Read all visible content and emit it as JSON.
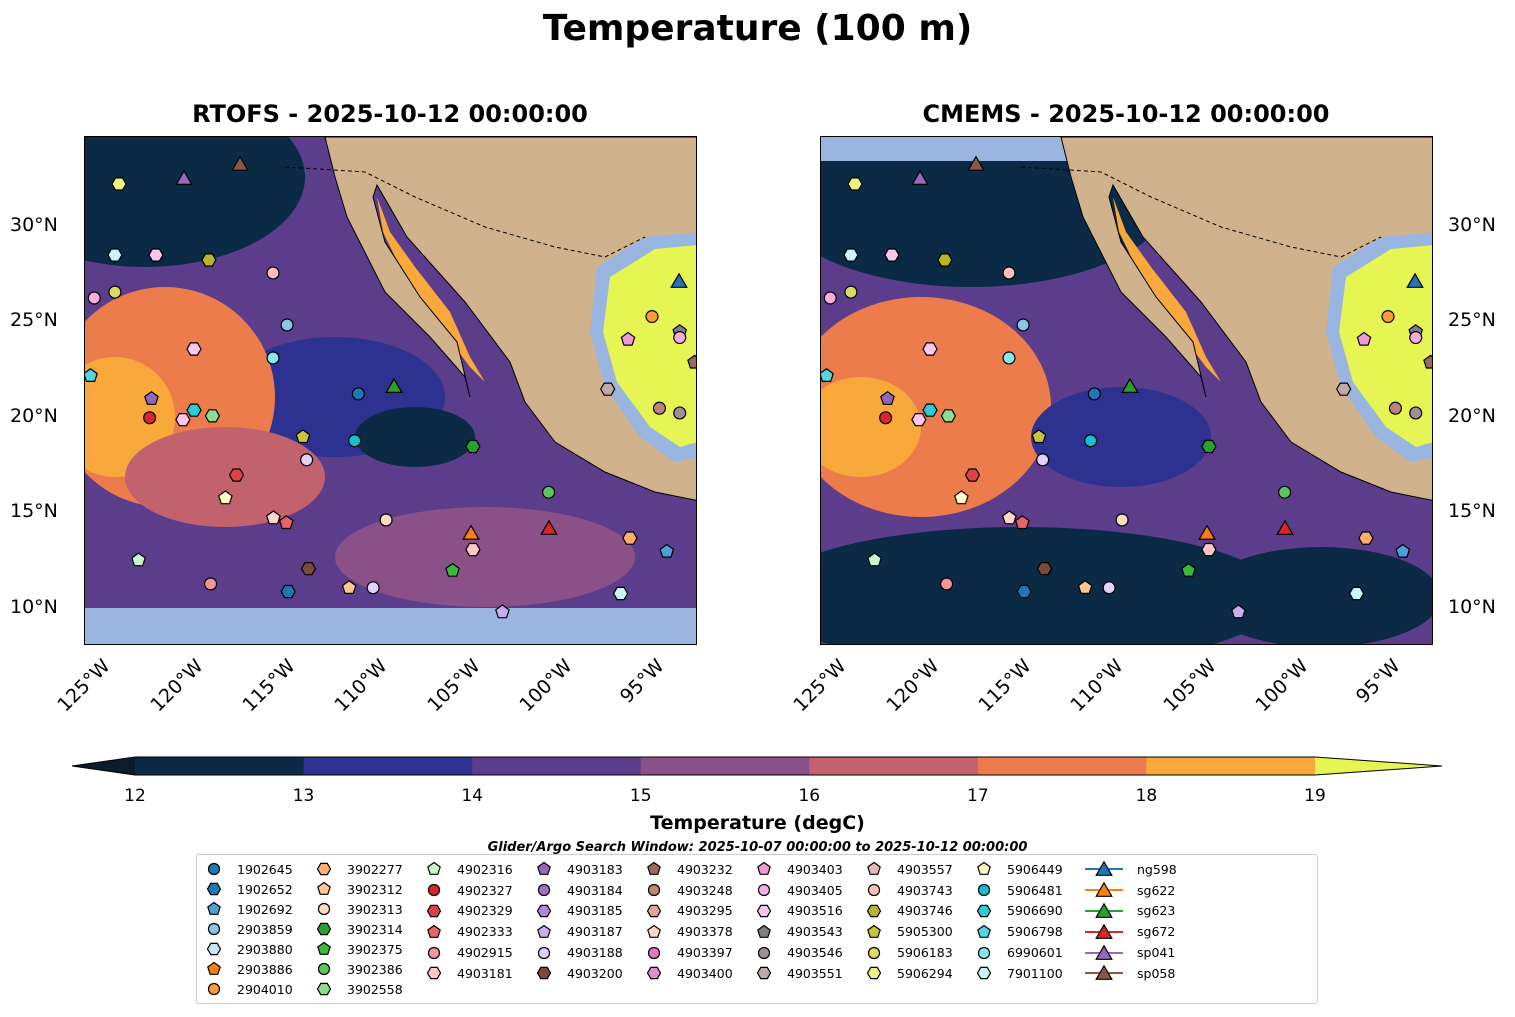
{
  "title": "Temperature (100 m)",
  "panels": [
    {
      "title": "RTOFS - 2025-10-12 00:00:00"
    },
    {
      "title": "CMEMS - 2025-10-12 00:00:00"
    }
  ],
  "lat_ticks": [
    "30°N",
    "25°N",
    "20°N",
    "15°N",
    "10°N"
  ],
  "lat_values": [
    30,
    25,
    20,
    15,
    10
  ],
  "lon_ticks": [
    "125°W",
    "120°W",
    "115°W",
    "110°W",
    "105°W",
    "100°W",
    "95°W"
  ],
  "lon_values": [
    -125,
    -120,
    -115,
    -110,
    -105,
    -100,
    -95
  ],
  "colorbar": {
    "label": "Temperature (degC)",
    "ticks": [
      "12",
      "13",
      "14",
      "15",
      "16",
      "17",
      "18",
      "19"
    ],
    "colors": [
      "#0a2a46",
      "#2d318f",
      "#5b3d8c",
      "#8a5088",
      "#c1626d",
      "#ec7c4c",
      "#f9a93b"
    ],
    "under": "#0b1d2c",
    "over": "#e6f554"
  },
  "search_window": "Glider/Argo Search Window: 2025-10-07 00:00:00 to 2025-10-12 00:00:00",
  "legend_columns": [
    [
      {
        "id": "1902645",
        "shape": "circle",
        "color": "#1f77b4"
      },
      {
        "id": "1902652",
        "shape": "hex",
        "color": "#1f77b4"
      },
      {
        "id": "1902692",
        "shape": "pent",
        "color": "#4e9fd6"
      },
      {
        "id": "2903859",
        "shape": "circle",
        "color": "#8dc4ea"
      },
      {
        "id": "2903880",
        "shape": "hex",
        "color": "#c6e4f7"
      },
      {
        "id": "2903886",
        "shape": "pent",
        "color": "#ff7f0e"
      },
      {
        "id": "2904010",
        "shape": "circle",
        "color": "#ff9a3c"
      }
    ],
    [
      {
        "id": "3902277",
        "shape": "hex",
        "color": "#ffae6b"
      },
      {
        "id": "3902312",
        "shape": "pent",
        "color": "#ffc592"
      },
      {
        "id": "3902313",
        "shape": "circle",
        "color": "#ffdcbd"
      },
      {
        "id": "3902314",
        "shape": "hex",
        "color": "#2ca02c"
      },
      {
        "id": "3902375",
        "shape": "pent",
        "color": "#3db83d"
      },
      {
        "id": "3902386",
        "shape": "circle",
        "color": "#5cc65c"
      },
      {
        "id": "3902558",
        "shape": "hex",
        "color": "#8fdc8f"
      }
    ],
    [
      {
        "id": "4902316",
        "shape": "pent",
        "color": "#c8f7c8"
      },
      {
        "id": "4902327",
        "shape": "circle",
        "color": "#d62728"
      },
      {
        "id": "4902329",
        "shape": "hex",
        "color": "#dd4446"
      },
      {
        "id": "4902333",
        "shape": "pent",
        "color": "#e86466"
      },
      {
        "id": "4902915",
        "shape": "circle",
        "color": "#f19797"
      },
      {
        "id": "4903181",
        "shape": "hex",
        "color": "#ffc6c6"
      }
    ],
    [
      {
        "id": "4903183",
        "shape": "pent",
        "color": "#9467bd"
      },
      {
        "id": "4903184",
        "shape": "circle",
        "color": "#9d74c4"
      },
      {
        "id": "4903185",
        "shape": "hex",
        "color": "#ad8ad2"
      },
      {
        "id": "4903187",
        "shape": "pent",
        "color": "#c9aef0"
      },
      {
        "id": "4903188",
        "shape": "circle",
        "color": "#e3d0fb"
      },
      {
        "id": "4903200",
        "shape": "hex",
        "color": "#7b4a3c"
      }
    ],
    [
      {
        "id": "4903232",
        "shape": "pent",
        "color": "#9b6a5c"
      },
      {
        "id": "4903248",
        "shape": "circle",
        "color": "#bb8677"
      },
      {
        "id": "4903295",
        "shape": "hex",
        "color": "#d9a89a"
      },
      {
        "id": "4903378",
        "shape": "pent",
        "color": "#ffd6cb"
      },
      {
        "id": "4903397",
        "shape": "circle",
        "color": "#e377c2"
      },
      {
        "id": "4903400",
        "shape": "hex",
        "color": "#e88bcd"
      }
    ],
    [
      {
        "id": "4903403",
        "shape": "pent",
        "color": "#f09bd6"
      },
      {
        "id": "4903405",
        "shape": "circle",
        "color": "#f7aedf"
      },
      {
        "id": "4903516",
        "shape": "hex",
        "color": "#fdc6ec"
      },
      {
        "id": "4903543",
        "shape": "pent",
        "color": "#7f7f7f"
      },
      {
        "id": "4903546",
        "shape": "circle",
        "color": "#9b9391"
      },
      {
        "id": "4903551",
        "shape": "hex",
        "color": "#bfaaaa"
      }
    ],
    [
      {
        "id": "4903557",
        "shape": "pent",
        "color": "#e3baba"
      },
      {
        "id": "4903743",
        "shape": "circle",
        "color": "#ffbfbf"
      },
      {
        "id": "4903746",
        "shape": "hex",
        "color": "#b5b52a"
      },
      {
        "id": "5905300",
        "shape": "pent",
        "color": "#c5c53a"
      },
      {
        "id": "5906183",
        "shape": "circle",
        "color": "#dbdb66"
      },
      {
        "id": "5906294",
        "shape": "hex",
        "color": "#f0f080"
      }
    ],
    [
      {
        "id": "5906449",
        "shape": "pent",
        "color": "#fffcc8"
      },
      {
        "id": "5906481",
        "shape": "circle",
        "color": "#17becf"
      },
      {
        "id": "5906690",
        "shape": "hex",
        "color": "#2cc9d6"
      },
      {
        "id": "5906798",
        "shape": "pent",
        "color": "#52d6df"
      },
      {
        "id": "6990601",
        "shape": "circle",
        "color": "#86e8ef"
      },
      {
        "id": "7901100",
        "shape": "hex",
        "color": "#c8f5fa"
      }
    ],
    [
      {
        "id": "ng598",
        "shape": "tri",
        "color": "#1f77b4",
        "line": true
      },
      {
        "id": "sg622",
        "shape": "tri",
        "color": "#ff7f0e",
        "line": true
      },
      {
        "id": "sg623",
        "shape": "tri",
        "color": "#2ca02c",
        "line": true
      },
      {
        "id": "sg672",
        "shape": "tri",
        "color": "#d62728",
        "line": true
      },
      {
        "id": "sp041",
        "shape": "tri",
        "color": "#9467bd",
        "line": true
      },
      {
        "id": "sp058",
        "shape": "tri",
        "color": "#8c564b",
        "line": true
      }
    ]
  ],
  "markers": [
    {
      "id": "sp041",
      "lon": -120.74,
      "lat": 32.55
    },
    {
      "id": "sp058",
      "lon": -117.71,
      "lat": 33.29
    },
    {
      "id": "ng598",
      "lon": -93.94,
      "lat": 27.16
    },
    {
      "id": "sg623",
      "lon": -109.37,
      "lat": 21.66
    },
    {
      "id": "sg622",
      "lon": -105.2,
      "lat": 13.97
    },
    {
      "id": "sg672",
      "lon": -100.98,
      "lat": 14.23
    },
    {
      "id": "5906294",
      "lon": -124.26,
      "lat": 32.24
    },
    {
      "id": "7901100",
      "lon": -124.48,
      "lat": 28.52
    },
    {
      "id": "4903516",
      "lon": -122.26,
      "lat": 28.52
    },
    {
      "id": "4903746",
      "lon": -119.39,
      "lat": 28.26
    },
    {
      "id": "4903743",
      "lon": -115.92,
      "lat": 27.58
    },
    {
      "id": "2903859",
      "lon": -115.16,
      "lat": 24.86
    },
    {
      "id": "6990601",
      "lon": -115.92,
      "lat": 23.13
    },
    {
      "id": "4903405",
      "lon": -125.6,
      "lat": 26.27
    },
    {
      "id": "5906183",
      "lon": -124.48,
      "lat": 26.58
    },
    {
      "id": "4903516",
      "lon": -120.2,
      "lat": 23.6
    },
    {
      "id": "5906798",
      "lon": -125.8,
      "lat": 22.2
    },
    {
      "id": "4903183",
      "lon": -122.5,
      "lat": 21.0
    },
    {
      "id": "4902327",
      "lon": -122.6,
      "lat": 20.0
    },
    {
      "id": "4903516",
      "lon": -120.8,
      "lat": 19.9
    },
    {
      "id": "5906690",
      "lon": -120.2,
      "lat": 20.4
    },
    {
      "id": "3902558",
      "lon": -119.2,
      "lat": 20.1
    },
    {
      "id": "4902329",
      "lon": -117.9,
      "lat": 17.0
    },
    {
      "id": "5906449",
      "lon": -118.5,
      "lat": 15.8
    },
    {
      "id": "5905300",
      "lon": -114.3,
      "lat": 19.0
    },
    {
      "id": "4903188",
      "lon": -114.1,
      "lat": 17.8
    },
    {
      "id": "1902645",
      "lon": -111.3,
      "lat": 21.25
    },
    {
      "id": "5906481",
      "lon": -111.5,
      "lat": 18.8
    },
    {
      "id": "3902314",
      "lon": -105.1,
      "lat": 18.5
    },
    {
      "id": "3902386",
      "lon": -101.0,
      "lat": 16.1
    },
    {
      "id": "4903378",
      "lon": -115.9,
      "lat": 14.75
    },
    {
      "id": "4902333",
      "lon": -115.2,
      "lat": 14.5
    },
    {
      "id": "3902313",
      "lon": -109.8,
      "lat": 14.65
    },
    {
      "id": "4903181",
      "lon": -105.1,
      "lat": 13.1
    },
    {
      "id": "4902316",
      "lon": -123.2,
      "lat": 12.55
    },
    {
      "id": "4902915",
      "lon": -119.3,
      "lat": 11.3
    },
    {
      "id": "4903200",
      "lon": -114.0,
      "lat": 12.1
    },
    {
      "id": "1902652",
      "lon": -115.1,
      "lat": 10.9
    },
    {
      "id": "3902312",
      "lon": -111.8,
      "lat": 11.1
    },
    {
      "id": "4903188",
      "lon": -110.5,
      "lat": 11.1
    },
    {
      "id": "3902375",
      "lon": -106.2,
      "lat": 12.0
    },
    {
      "id": "4903187",
      "lon": -103.5,
      "lat": 9.83
    },
    {
      "id": "7901100",
      "lon": -97.1,
      "lat": 10.8
    },
    {
      "id": "1902692",
      "lon": -94.6,
      "lat": 13.0
    },
    {
      "id": "3902277",
      "lon": -96.6,
      "lat": 13.7
    },
    {
      "id": "2904010",
      "lon": -95.4,
      "lat": 25.3
    },
    {
      "id": "4903543",
      "lon": -93.9,
      "lat": 24.5
    },
    {
      "id": "4903405",
      "lon": -93.9,
      "lat": 24.2
    },
    {
      "id": "4903403",
      "lon": -96.7,
      "lat": 24.1
    },
    {
      "id": "4903551",
      "lon": -97.8,
      "lat": 21.5
    },
    {
      "id": "4903248",
      "lon": -95.0,
      "lat": 20.5
    },
    {
      "id": "4903546",
      "lon": -93.9,
      "lat": 20.25
    },
    {
      "id": "4903232",
      "lon": -93.1,
      "lat": 22.9
    }
  ]
}
